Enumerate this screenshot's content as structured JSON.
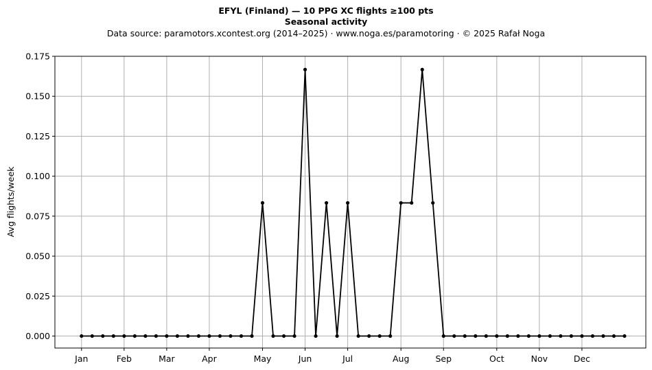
{
  "header": {
    "title": "EFYL (Finland)  —  10 PPG XC flights ≥100 pts",
    "subtitle": "Seasonal activity",
    "source": "Data source: paramotors.xcontest.org (2014–2025)  ·  www.noga.es/paramotoring  ·  © 2025 Rafał Noga"
  },
  "chart_data": {
    "type": "line",
    "title": "EFYL (Finland)  —  10 PPG XC flights ≥100 pts",
    "subtitle": "Seasonal activity",
    "xlabel": "",
    "ylabel": "Avg flights/week",
    "x_unit": "week of year",
    "xlim": [
      -1.5,
      54.0
    ],
    "ylim": [
      -0.0075,
      0.175
    ],
    "month_ticks": [
      {
        "label": "Jan",
        "week": 1
      },
      {
        "label": "Feb",
        "week": 5
      },
      {
        "label": "Mar",
        "week": 9
      },
      {
        "label": "Apr",
        "week": 13
      },
      {
        "label": "May",
        "week": 18
      },
      {
        "label": "Jun",
        "week": 22
      },
      {
        "label": "Jul",
        "week": 26
      },
      {
        "label": "Aug",
        "week": 31
      },
      {
        "label": "Sep",
        "week": 35
      },
      {
        "label": "Oct",
        "week": 40
      },
      {
        "label": "Nov",
        "week": 44
      },
      {
        "label": "Dec",
        "week": 48
      }
    ],
    "y_ticks": [
      0.0,
      0.025,
      0.05,
      0.075,
      0.1,
      0.125,
      0.15,
      0.175
    ],
    "y_tick_labels": [
      "0.000",
      "0.025",
      "0.050",
      "0.075",
      "0.100",
      "0.125",
      "0.150",
      "0.175"
    ],
    "grid": true,
    "series": [
      {
        "x": [
          1,
          2,
          3,
          4,
          5,
          6,
          7,
          8,
          9,
          10,
          11,
          12,
          13,
          14,
          15,
          16,
          17,
          18,
          19,
          20,
          21,
          22,
          23,
          24,
          25,
          26,
          27,
          28,
          29,
          30,
          31,
          32,
          33,
          34,
          35,
          36,
          37,
          38,
          39,
          40,
          41,
          42,
          43,
          44,
          45,
          46,
          47,
          48,
          49,
          50,
          51,
          52
        ],
        "values": [
          0,
          0,
          0,
          0,
          0,
          0,
          0,
          0,
          0,
          0,
          0,
          0,
          0,
          0,
          0,
          0,
          0,
          0.0833,
          0,
          0,
          0,
          0.1667,
          0,
          0.0833,
          0,
          0.0833,
          0,
          0,
          0,
          0,
          0.0833,
          0.0833,
          0.1667,
          0.0833,
          0,
          0,
          0,
          0,
          0,
          0,
          0,
          0,
          0,
          0,
          0,
          0,
          0,
          0,
          0,
          0,
          0,
          0
        ],
        "color": "#000000",
        "marker": "circle"
      }
    ]
  }
}
